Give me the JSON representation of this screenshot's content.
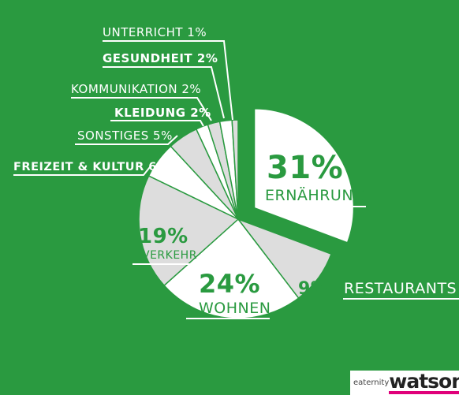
{
  "chart_data": {
    "type": "pie",
    "categories": [
      "ERNÄHRUNG",
      "RESTAURANTS",
      "WOHNEN",
      "VERKEHR",
      "FREIZEIT & KULTUR",
      "SONSTIGES",
      "KLEIDUNG",
      "KOMMUNIKATION",
      "GESUNDHEIT",
      "UNTERRICHT"
    ],
    "values": [
      31,
      9,
      24,
      19,
      6,
      5,
      2,
      2,
      2,
      1
    ],
    "labels": {
      "ernaehrung_pct": "31%",
      "ernaehrung_name": "ERNÄHRUNG",
      "restaurants_pct": "9%",
      "restaurants_name": "RESTAURANTS",
      "wohnen_pct": "24%",
      "wohnen_name": "WOHNEN",
      "verkehr_pct": "19%",
      "verkehr_name": "VERKEHR",
      "freizeit": "FREIZEIT & KULTUR 6%",
      "sonstiges": "SONSTIGES 5%",
      "kleidung": "KLEIDUNG 2%",
      "kommunikation": "KOMMUNIKATION 2%",
      "gesundheit": "GESUNDHEIT 2%",
      "unterricht": "UNTERRICHT 1%"
    },
    "colors": {
      "background": "#2a9a40",
      "slice_white": "#ffffff",
      "slice_grey": "#dddddd",
      "label_green": "#2a9a40",
      "label_white": "#ffffff"
    }
  },
  "logos": {
    "eaternity": "eaternity",
    "watson": "watson"
  }
}
